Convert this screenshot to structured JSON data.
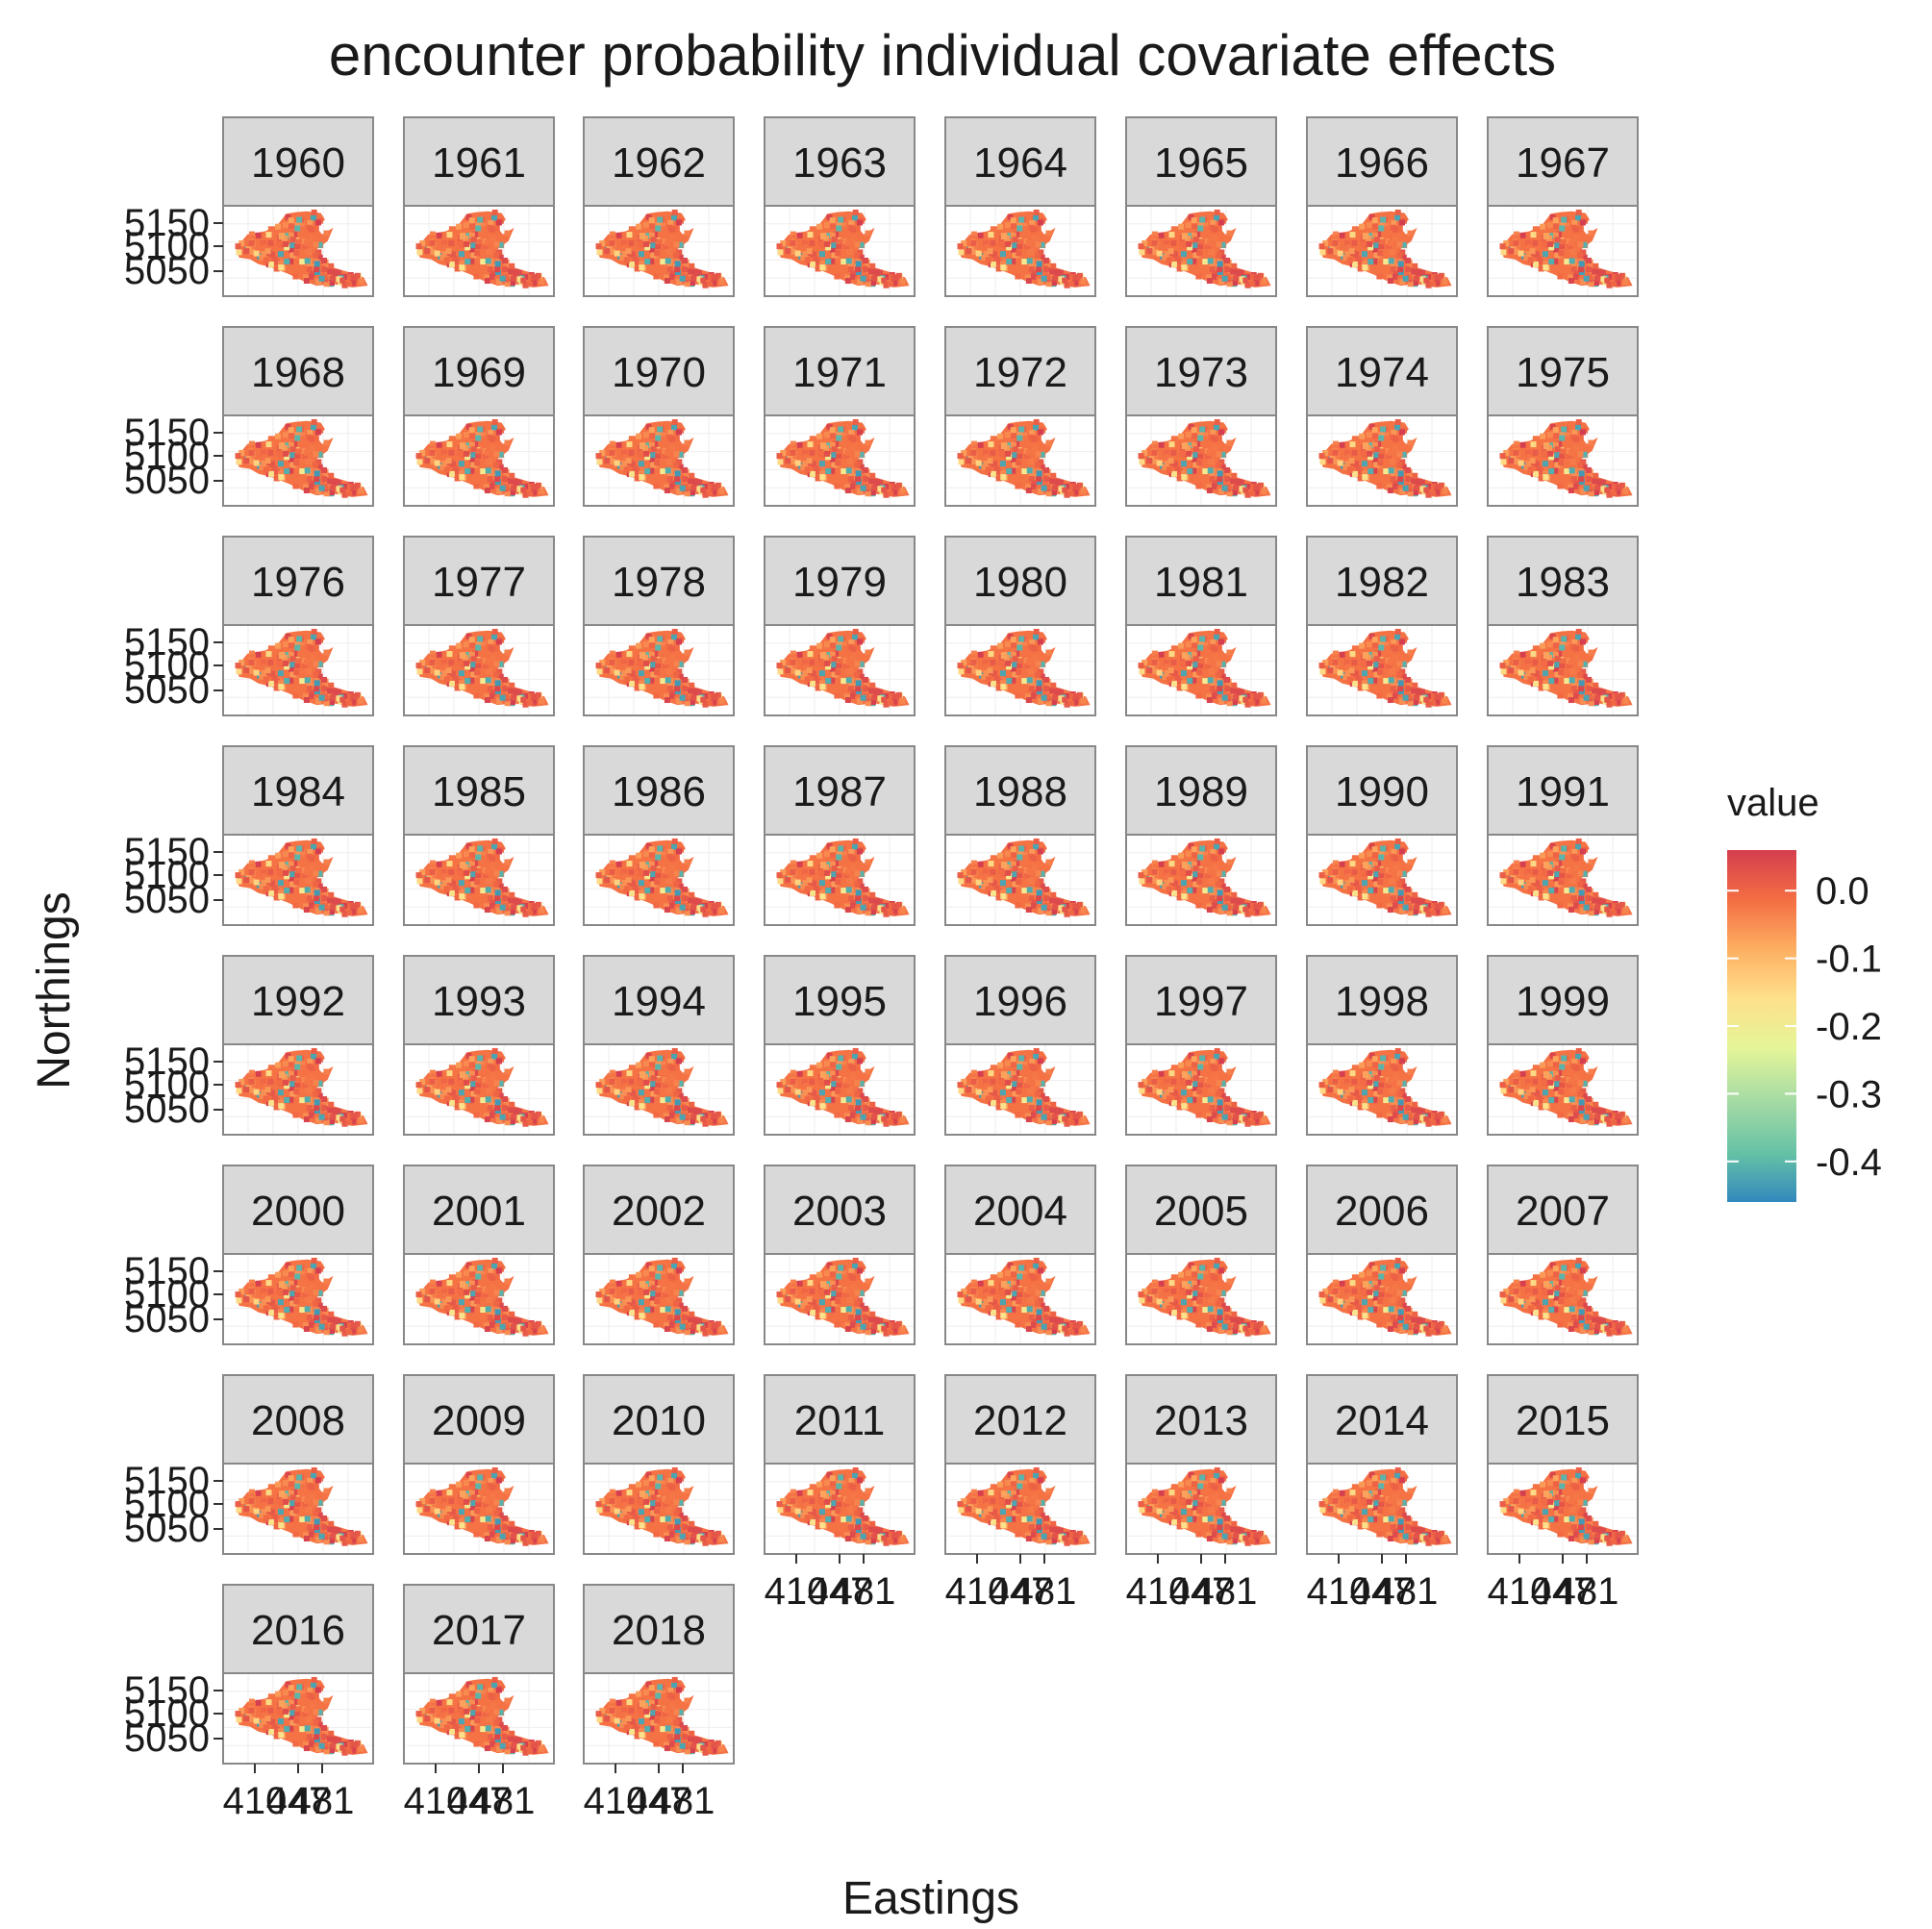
{
  "chart_data": {
    "type": "heatmap",
    "title": "encounter probability individual covariate effects",
    "xlabel": "Eastings",
    "ylabel": "Northings",
    "facets": [
      "1960",
      "1961",
      "1962",
      "1963",
      "1964",
      "1965",
      "1966",
      "1967",
      "1968",
      "1969",
      "1970",
      "1971",
      "1972",
      "1973",
      "1974",
      "1975",
      "1976",
      "1977",
      "1978",
      "1979",
      "1980",
      "1981",
      "1982",
      "1983",
      "1984",
      "1985",
      "1986",
      "1987",
      "1988",
      "1989",
      "1990",
      "1991",
      "1992",
      "1993",
      "1994",
      "1995",
      "1996",
      "1997",
      "1998",
      "1999",
      "2000",
      "2001",
      "2002",
      "2003",
      "2004",
      "2005",
      "2006",
      "2007",
      "2008",
      "2009",
      "2010",
      "2011",
      "2012",
      "2013",
      "2014",
      "2015",
      "2016",
      "2017",
      "2018"
    ],
    "facet_columns": 8,
    "y_ticks": [
      "5150",
      "5100",
      "5050"
    ],
    "x_ticks": [
      "410",
      "447",
      "481"
    ],
    "legend": {
      "title": "value",
      "ticks": [
        "0.0",
        "-0.1",
        "-0.2",
        "-0.3",
        "-0.4"
      ],
      "tick_values": [
        0.0,
        -0.1,
        -0.2,
        -0.3,
        -0.4
      ],
      "range": [
        -0.46,
        0.06
      ],
      "palette": [
        "#3288bd",
        "#66c2a5",
        "#abdda4",
        "#e6f598",
        "#fee08b",
        "#fdae61",
        "#f46d43",
        "#d53e4f"
      ],
      "position": "right"
    },
    "grid": true
  }
}
